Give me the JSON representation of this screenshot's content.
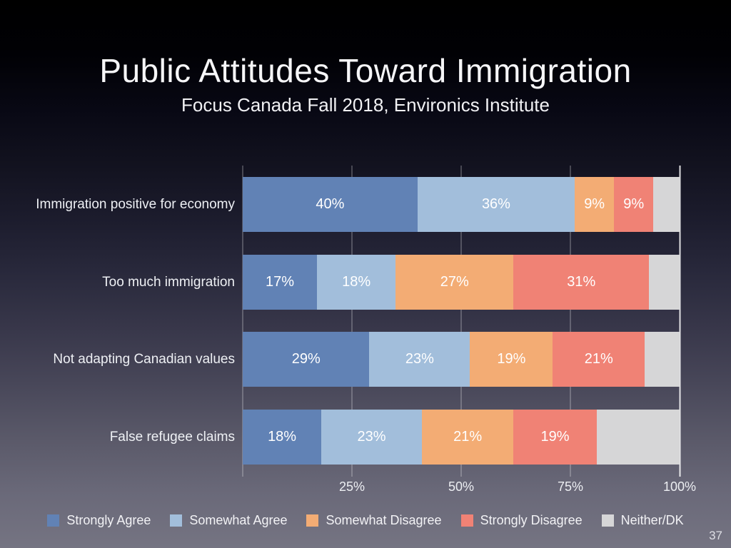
{
  "title": "Public Attitudes Toward Immigration",
  "subtitle": "Focus Canada Fall 2018, Environics Institute",
  "page_number": "37",
  "colors": {
    "strongly_agree": "#6182b5",
    "somewhat_agree": "#a2bedb",
    "somewhat_disagree": "#f3ac74",
    "strongly_disagree": "#f08275",
    "neither_dk": "#d6d6d7",
    "gridline": "rgba(255,255,255,0.45)",
    "gridline_100": "rgba(255,255,255,0.85)",
    "background_top": "#000000",
    "background_bottom": "#757482",
    "text": "#ffffff"
  },
  "chart_data": {
    "type": "bar",
    "orientation": "horizontal",
    "stacked": true,
    "grid": true,
    "legend_position": "bottom",
    "value_suffix": "%",
    "xlim": [
      0,
      100
    ],
    "categories": [
      "Immigration positive for economy",
      "Too much immigration",
      "Not adapting Canadian values",
      "False refugee claims"
    ],
    "series": [
      {
        "name": "Strongly Agree",
        "color": "#6182b5",
        "values": [
          40,
          17,
          29,
          18
        ],
        "show_labels": true
      },
      {
        "name": "Somewhat Agree",
        "color": "#a2bedb",
        "values": [
          36,
          18,
          23,
          23
        ],
        "show_labels": true
      },
      {
        "name": "Somewhat Disagree",
        "color": "#f3ac74",
        "values": [
          9,
          27,
          19,
          21
        ],
        "show_labels": true
      },
      {
        "name": "Strongly Disagree",
        "color": "#f08275",
        "values": [
          9,
          31,
          21,
          19
        ],
        "show_labels": true
      },
      {
        "name": "Neither/DK",
        "color": "#d6d6d7",
        "values": [
          6,
          7,
          8,
          19
        ],
        "show_labels": false
      }
    ],
    "x_ticks": [
      {
        "value": 0,
        "label": ""
      },
      {
        "value": 25,
        "label": "25%"
      },
      {
        "value": 50,
        "label": "50%"
      },
      {
        "value": 75,
        "label": "75%"
      },
      {
        "value": 100,
        "label": "100%"
      }
    ]
  }
}
